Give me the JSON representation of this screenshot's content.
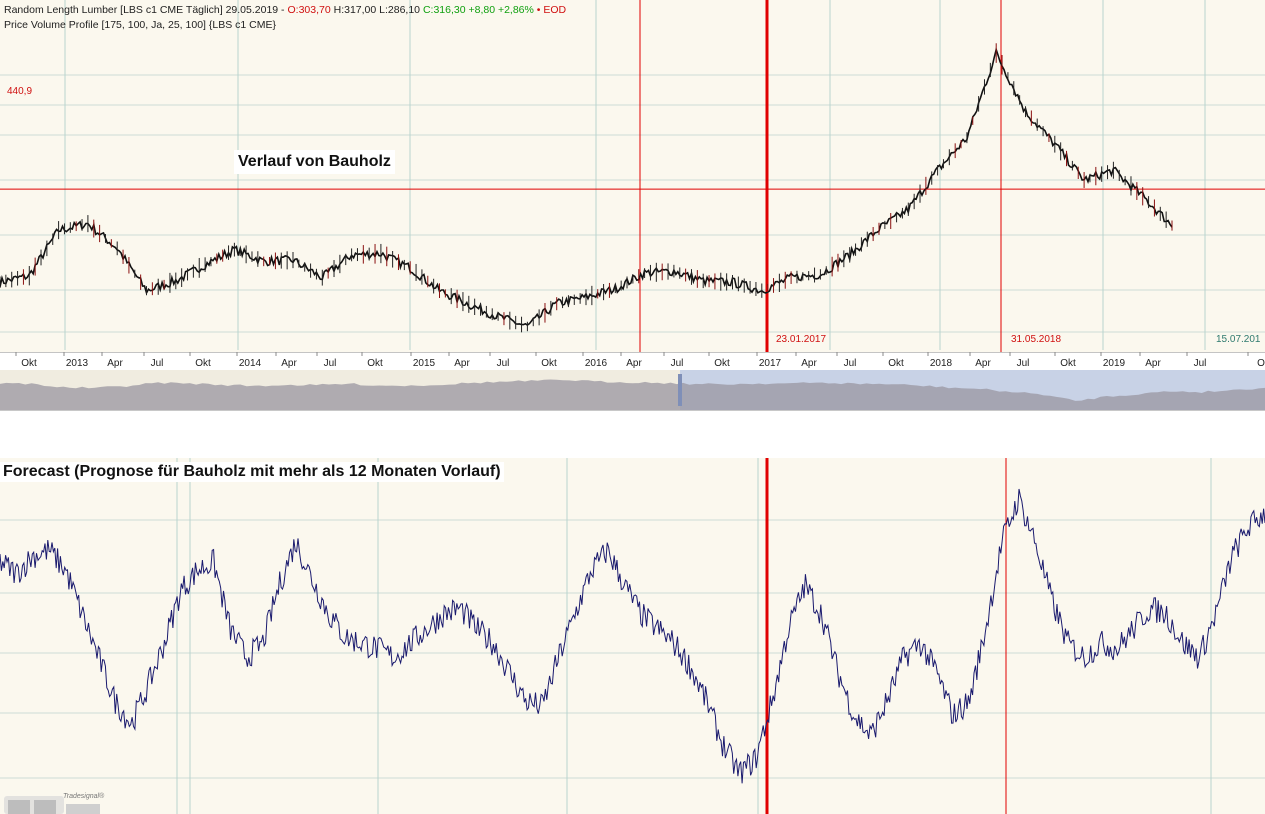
{
  "header": {
    "line1_prefix": "Random Length Lumber [LBS c1 CME Täglich] 29.05.2019 - ",
    "open": "O:303,70",
    "high_low": " H:317,00 L:286,10 ",
    "close": "C:316,30 +8,80 +2,86%",
    "eod": " • EOD",
    "line2": "Price Volume Profile [175, 100, Ja, 25, 100] {LBS c1 CME}"
  },
  "title_top": "Verlauf von Bauholz",
  "title_bottom": "Forecast (Prognose für Bauholz mit mehr als 12 Monaten Vorlauf)",
  "level_label": "440,9",
  "date_markers": [
    "23.01.2017",
    "31.05.2018",
    "15.07.201"
  ],
  "time_axis_labels": [
    "Okt",
    "2013",
    "Apr",
    "Jul",
    "Okt",
    "2014",
    "Apr",
    "Jul",
    "Okt",
    "2015",
    "Apr",
    "Jul",
    "Okt",
    "2016",
    "Apr",
    "Jul",
    "Okt",
    "2017",
    "Apr",
    "Jul",
    "Okt",
    "2018",
    "Apr",
    "Jul",
    "Okt",
    "2019",
    "Apr",
    "Jul",
    "O"
  ],
  "watermark": "Tradesignal®",
  "colors": {
    "panel_bg": "#fbf8ee",
    "price_line": "#111111",
    "forecast_line": "#1a1a6e",
    "marker_red": "#e00000",
    "grid": "#b9d3cd",
    "navigator_fill": "#9a95a0",
    "navigator_selected": "#c8d2e6",
    "navigator_selected_fill": "#7f8fb8"
  },
  "chart_data": [
    {
      "type": "line",
      "title": "Verlauf von Bauholz",
      "series": [
        {
          "x": [
            "2012-09",
            "2012-11",
            "2013-01",
            "2013-03",
            "2013-05",
            "2013-07",
            "2013-09",
            "2013-11",
            "2014-01",
            "2014-03",
            "2014-05",
            "2014-07",
            "2014-09",
            "2014-11",
            "2015-01",
            "2015-03",
            "2015-05",
            "2015-07",
            "2015-09",
            "2015-11",
            "2016-01",
            "2016-03",
            "2016-05",
            "2016-07",
            "2016-09",
            "2016-11",
            "2017-01",
            "2017-03",
            "2017-05",
            "2017-07",
            "2017-09",
            "2017-11",
            "2018-01",
            "2018-03",
            "2018-05",
            "2018-07",
            "2018-09",
            "2018-11",
            "2019-01",
            "2019-03",
            "2019-05"
          ],
          "values": [
            298,
            308,
            378,
            388,
            350,
            285,
            300,
            325,
            348,
            330,
            332,
            305,
            340,
            342,
            320,
            285,
            264,
            245,
            230,
            265,
            275,
            288,
            312,
            315,
            300,
            298,
            285,
            305,
            310,
            340,
            380,
            410,
            470,
            520,
            650,
            560,
            510,
            455,
            470,
            430,
            385
          ]
        }
      ],
      "annotations": [
        "440,9",
        "23.01.2017",
        "31.05.2018",
        "15.07.201"
      ],
      "legend": "none",
      "grid": true
    },
    {
      "type": "line",
      "title": "Forecast (Prognose für Bauholz mit mehr als 12 Monaten Vorlauf)",
      "series": [
        {
          "values": [
            0.78,
            0.74,
            0.8,
            0.82,
            0.75,
            0.6,
            0.45,
            0.3,
            0.22,
            0.35,
            0.5,
            0.68,
            0.75,
            0.78,
            0.55,
            0.45,
            0.5,
            0.7,
            0.85,
            0.72,
            0.6,
            0.52,
            0.5,
            0.48,
            0.45,
            0.5,
            0.55,
            0.6,
            0.62,
            0.55,
            0.5,
            0.4,
            0.3,
            0.28,
            0.45,
            0.6,
            0.75,
            0.82,
            0.7,
            0.6,
            0.55,
            0.5,
            0.42,
            0.3,
            0.15,
            0.05,
            0.1,
            0.3,
            0.55,
            0.7,
            0.6,
            0.4,
            0.25,
            0.18,
            0.3,
            0.45,
            0.5,
            0.4,
            0.25,
            0.3,
            0.55,
            0.85,
            1.0,
            0.85,
            0.65,
            0.5,
            0.45,
            0.5,
            0.48,
            0.55,
            0.62,
            0.6,
            0.5,
            0.45,
            0.6,
            0.8,
            0.9,
            0.95
          ]
        }
      ],
      "legend": "none",
      "grid": true
    }
  ]
}
